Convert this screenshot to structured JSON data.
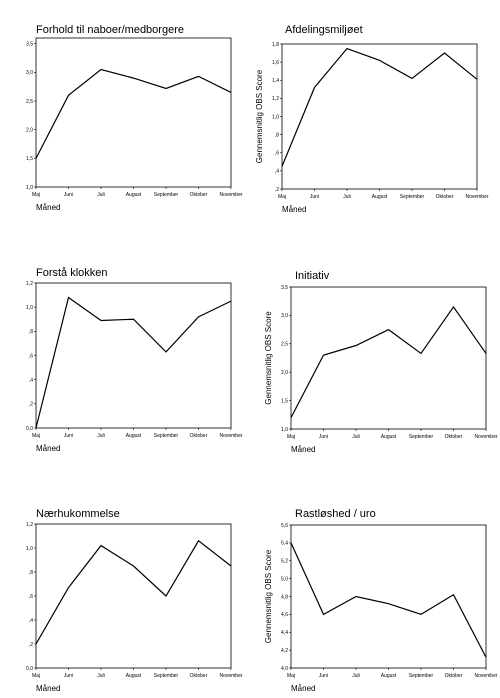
{
  "chart_data": [
    {
      "type": "line",
      "title": "Forhold til naboer/medborgere",
      "xlabel": "Måned",
      "categories": [
        "Maj",
        "Juni",
        "Juli",
        "August",
        "September",
        "Oktober",
        "November"
      ],
      "series": [
        {
          "color": "#000000",
          "values": [
            1.5,
            2.6,
            3.05,
            2.9,
            2.72,
            2.93,
            2.65
          ]
        }
      ],
      "ylim": [
        1.0,
        3.6
      ],
      "yticks": [
        {
          "value": 1.0,
          "label": "1,0"
        },
        {
          "value": 1.5,
          "label": "1,5"
        },
        {
          "value": 2.0,
          "label": "2,0"
        },
        {
          "value": 2.5,
          "label": "2,5"
        },
        {
          "value": 3.0,
          "label": "3,0"
        },
        {
          "value": 3.5,
          "label": "3,5"
        }
      ]
    },
    {
      "type": "line",
      "title": "Afdelingsmiljøet",
      "xlabel": "Måned",
      "ylabel": "Gennemsnitlig OBS Score",
      "categories": [
        "Maj",
        "Juni",
        "Juli",
        "August",
        "September",
        "Oktober",
        "November"
      ],
      "series": [
        {
          "color": "#000000",
          "values": [
            0.45,
            1.32,
            1.75,
            1.62,
            1.42,
            1.7,
            1.41
          ]
        }
      ],
      "ylim": [
        0.2,
        1.8
      ],
      "yticks": [
        {
          "value": 0.2,
          "label": ",2"
        },
        {
          "value": 0.4,
          "label": ",4"
        },
        {
          "value": 0.6,
          "label": ",6"
        },
        {
          "value": 0.8,
          "label": ",8"
        },
        {
          "value": 1.0,
          "label": "1,0"
        },
        {
          "value": 1.2,
          "label": "1,2"
        },
        {
          "value": 1.4,
          "label": "1,4"
        },
        {
          "value": 1.6,
          "label": "1,6"
        },
        {
          "value": 1.8,
          "label": "1,8"
        }
      ]
    },
    {
      "type": "line",
      "title": "Forstå klokken",
      "xlabel": "Måned",
      "categories": [
        "Maj",
        "Juni",
        "Juli",
        "August",
        "September",
        "Oktober",
        "November"
      ],
      "series": [
        {
          "color": "#000000",
          "values": [
            0.0,
            1.08,
            0.89,
            0.9,
            0.63,
            0.92,
            1.05
          ]
        }
      ],
      "ylim": [
        0.0,
        1.2
      ],
      "yticks": [
        {
          "value": 0.0,
          "label": "0,0"
        },
        {
          "value": 0.2,
          "label": ",2"
        },
        {
          "value": 0.4,
          "label": ",4"
        },
        {
          "value": 0.6,
          "label": ",6"
        },
        {
          "value": 0.8,
          "label": ",8"
        },
        {
          "value": 1.0,
          "label": "1,0"
        },
        {
          "value": 1.2,
          "label": "1,2"
        }
      ]
    },
    {
      "type": "line",
      "title": "Initiativ",
      "xlabel": "Måned",
      "ylabel": "Gennemsnitlig OBS Score",
      "categories": [
        "Maj",
        "Juni",
        "Juli",
        "August",
        "September",
        "Oktober",
        "November"
      ],
      "series": [
        {
          "color": "#000000",
          "values": [
            1.2,
            2.3,
            2.47,
            2.75,
            2.33,
            3.15,
            2.33
          ]
        }
      ],
      "ylim": [
        1.0,
        3.5
      ],
      "yticks": [
        {
          "value": 1.0,
          "label": "1,0"
        },
        {
          "value": 1.5,
          "label": "1,5"
        },
        {
          "value": 2.0,
          "label": "2,0"
        },
        {
          "value": 2.5,
          "label": "2,5"
        },
        {
          "value": 3.0,
          "label": "3,0"
        },
        {
          "value": 3.5,
          "label": "3,5"
        }
      ]
    },
    {
      "type": "line",
      "title": "Nærhukommelse",
      "xlabel": "Måned",
      "categories": [
        "Maj",
        "Juni",
        "Juli",
        "August",
        "September",
        "Oktober",
        "November"
      ],
      "series": [
        {
          "color": "#000000",
          "values": [
            0.2,
            0.67,
            1.02,
            0.85,
            0.6,
            1.06,
            0.85
          ]
        }
      ],
      "ylim": [
        0.0,
        1.2
      ],
      "yticks": [
        {
          "value": 0.0,
          "label": "0,0"
        },
        {
          "value": 0.2,
          "label": ",2"
        },
        {
          "value": 0.4,
          "label": ",4"
        },
        {
          "value": 0.6,
          "label": ",6"
        },
        {
          "value": 0.8,
          "label": ",8"
        },
        {
          "value": 1.0,
          "label": "1,0"
        },
        {
          "value": 1.2,
          "label": "1,2"
        }
      ]
    },
    {
      "type": "line",
      "title": "Rastløshed / uro",
      "xlabel": "Måned",
      "ylabel": "Gennemsnitlig OBS Score",
      "categories": [
        "Maj",
        "Juni",
        "Juli",
        "August",
        "September",
        "Oktober",
        "November"
      ],
      "series": [
        {
          "color": "#000000",
          "values": [
            5.4,
            4.6,
            4.8,
            4.72,
            4.6,
            4.82,
            4.12
          ]
        }
      ],
      "ylim": [
        4.0,
        5.6
      ],
      "yticks": [
        {
          "value": 4.0,
          "label": "4,0"
        },
        {
          "value": 4.2,
          "label": "4,2"
        },
        {
          "value": 4.4,
          "label": "4,4"
        },
        {
          "value": 4.6,
          "label": "4,6"
        },
        {
          "value": 4.8,
          "label": "4,8"
        },
        {
          "value": 5.0,
          "label": "5,0"
        },
        {
          "value": 5.2,
          "label": "5,2"
        },
        {
          "value": 5.4,
          "label": "5,4"
        },
        {
          "value": 5.6,
          "label": "5,6"
        }
      ]
    }
  ]
}
